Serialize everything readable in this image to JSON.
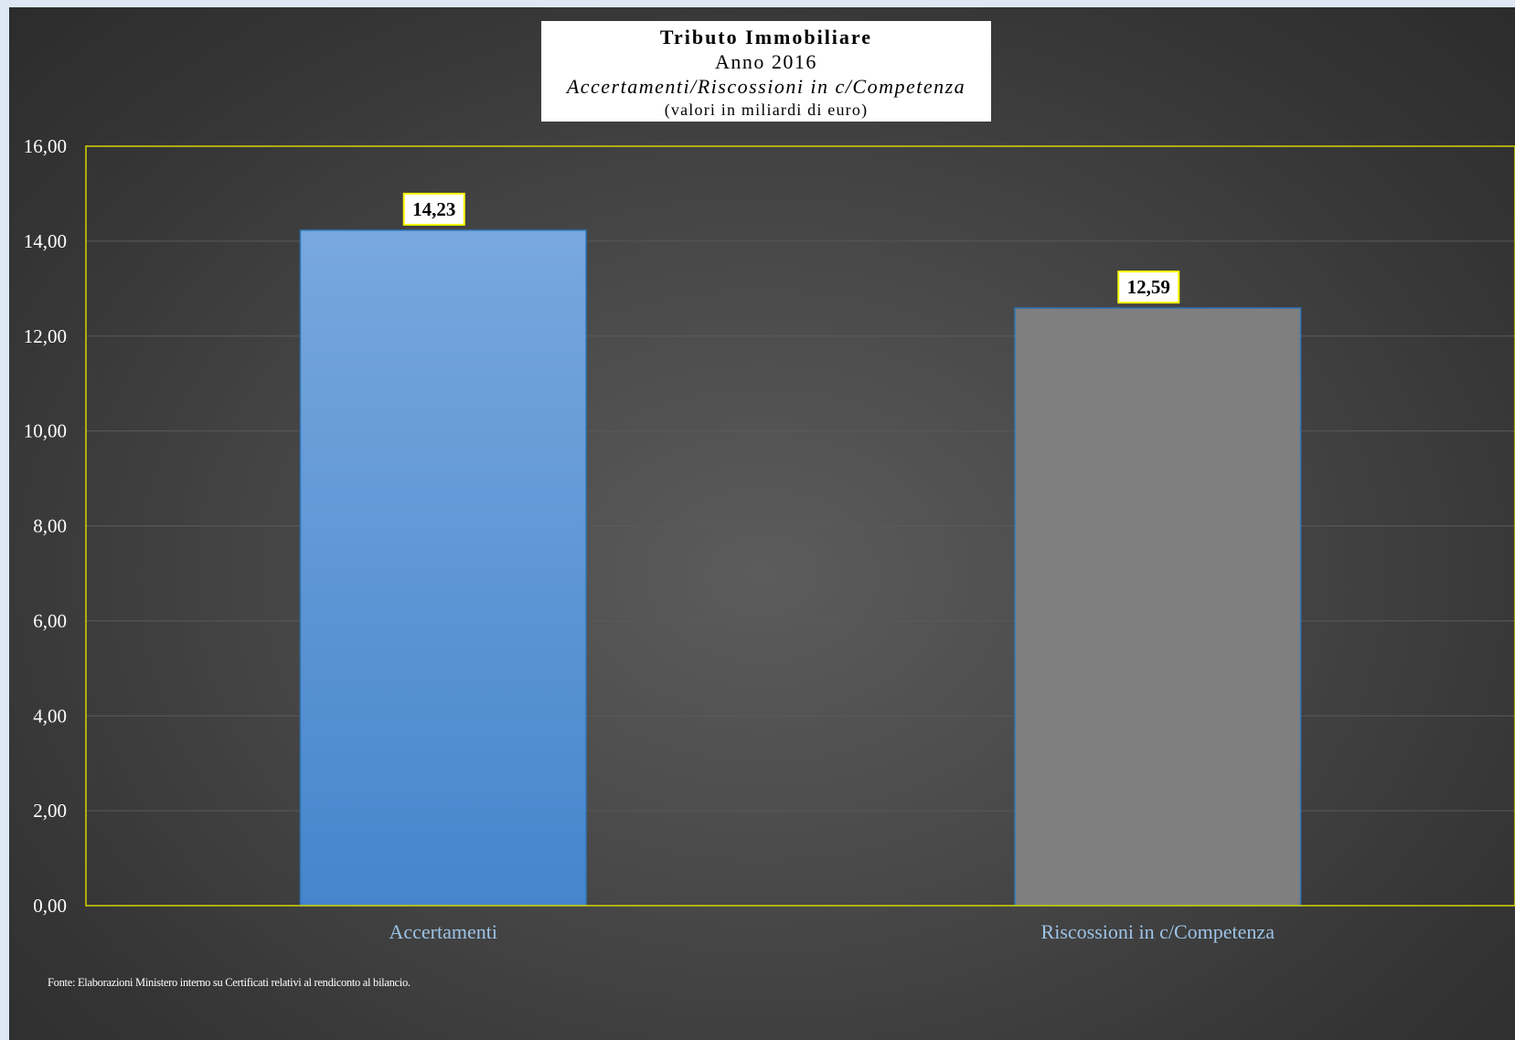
{
  "title": {
    "line1": "Tributo Immobiliare",
    "line2": "Anno 2016",
    "line3": "Accertamenti/Riscossioni in c/Competenza",
    "line4": "(valori in miliardi di euro)"
  },
  "source": "Fonte: Elaborazioni Ministero interno su Certificati relativi al rendiconto al bilancio.",
  "chart_data": {
    "type": "bar",
    "title": "Tributo Immobiliare",
    "subtitle": "Anno 2016 — Accertamenti/Riscossioni in c/Competenza (valori in miliardi di euro)",
    "categories": [
      "Accertamenti",
      "Riscossioni in c/Competenza"
    ],
    "values": [
      14.23,
      12.59
    ],
    "value_labels": [
      "14,23",
      "12,59"
    ],
    "yticks": [
      "0,00",
      "2,00",
      "4,00",
      "6,00",
      "8,00",
      "10,00",
      "12,00",
      "14,00",
      "16,00"
    ],
    "ylim": [
      0,
      16
    ],
    "xlabel": "",
    "ylabel": "",
    "grid": true,
    "legend": "none",
    "colors": {
      "bar1_top": "#78a8de",
      "bar1_bottom": "#4585cc",
      "bar2": "#7f7f7f",
      "bar_border": "#2e75b6",
      "plot_border": "#d4d400",
      "label_border": "#ffff00",
      "category_text": "#9dc3e6"
    }
  }
}
